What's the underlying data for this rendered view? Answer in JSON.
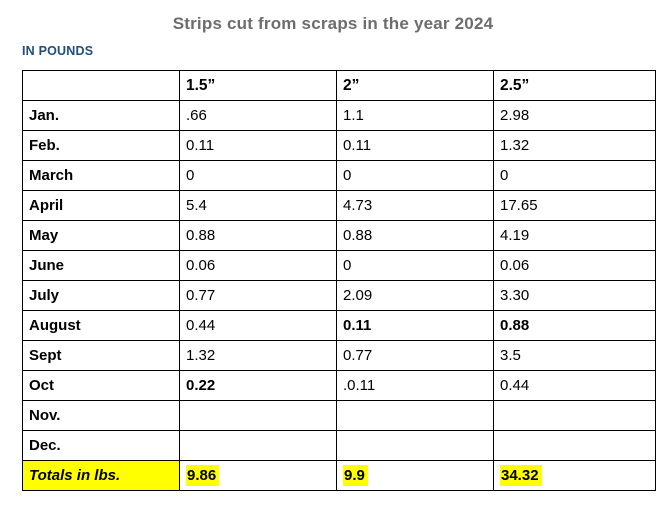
{
  "page": {
    "title": "Strips cut from scraps in the year 2024",
    "subtitle": "IN POUNDS"
  },
  "colors": {
    "title_text": "#6d6d6d",
    "subtitle_text": "#1f4e79",
    "highlight": "#ffff00",
    "table_border": "#000000"
  },
  "table": {
    "columns": [
      "",
      "1.5”",
      "2”",
      "2.5”"
    ],
    "rows": [
      {
        "label": "Jan.",
        "values": [
          ".66",
          "1.1",
          "2.98"
        ],
        "bold": [
          false,
          false,
          false
        ]
      },
      {
        "label": "Feb.",
        "values": [
          "0.11",
          "0.11",
          "1.32"
        ],
        "bold": [
          false,
          false,
          false
        ]
      },
      {
        "label": "March",
        "values": [
          "0",
          "0",
          "0"
        ],
        "bold": [
          false,
          false,
          false
        ]
      },
      {
        "label": "April",
        "values": [
          "5.4",
          "4.73",
          "17.65"
        ],
        "bold": [
          false,
          false,
          false
        ]
      },
      {
        "label": "May",
        "values": [
          "0.88",
          "0.88",
          "4.19"
        ],
        "bold": [
          false,
          false,
          false
        ]
      },
      {
        "label": "June",
        "values": [
          "0.06",
          "0",
          "0.06"
        ],
        "bold": [
          false,
          false,
          false
        ]
      },
      {
        "label": "July",
        "values": [
          "0.77",
          "2.09",
          "3.30"
        ],
        "bold": [
          false,
          false,
          false
        ]
      },
      {
        "label": "August",
        "values": [
          "0.44",
          "0.11",
          "0.88"
        ],
        "bold": [
          false,
          true,
          true
        ]
      },
      {
        "label": "Sept",
        "values": [
          "1.32",
          "0.77",
          "3.5"
        ],
        "bold": [
          false,
          false,
          false
        ]
      },
      {
        "label": "Oct",
        "values": [
          "0.22",
          ".0.11",
          "0.44"
        ],
        "bold": [
          true,
          false,
          false
        ]
      },
      {
        "label": "Nov.",
        "values": [
          "",
          "",
          ""
        ],
        "bold": [
          false,
          false,
          false
        ]
      },
      {
        "label": "Dec.",
        "values": [
          "",
          "",
          ""
        ],
        "bold": [
          false,
          false,
          false
        ]
      }
    ],
    "totals": {
      "label": "Totals in lbs.",
      "values": [
        "9.86",
        "9.9",
        "34.32"
      ]
    }
  }
}
